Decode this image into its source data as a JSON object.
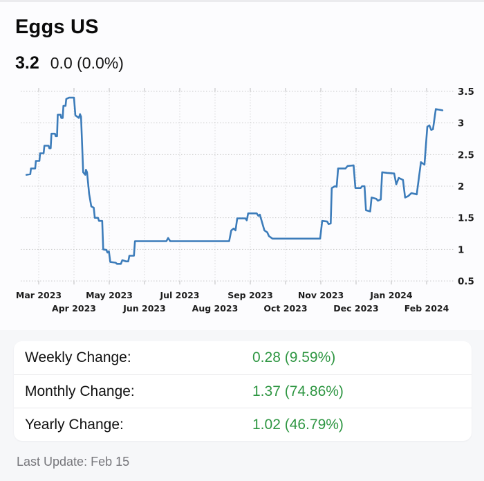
{
  "header": {
    "title": "Eggs US",
    "price": "3.2",
    "change": "0.0 (0.0%)"
  },
  "chart_data": {
    "type": "line",
    "title": "Eggs US price, weekly, Feb 2023 - Feb 2024",
    "series_name": "Eggs US",
    "line_color": "#3c7cba",
    "grid_color_h": "#c9c9c9",
    "grid_color_v": "#d9d9d9",
    "tick_color": "#bdbdbd",
    "label_color": "#1c1c1c",
    "x_tick_labels": [
      "Mar 2023",
      "Apr 2023",
      "May 2023",
      "Jun 2023",
      "Jul 2023",
      "Aug 2023",
      "Sep 2023",
      "Oct 2023",
      "Nov 2023",
      "Dec 2023",
      "Jan 2024",
      "Feb 2024"
    ],
    "y_ticks": [
      0.5,
      1,
      1.5,
      2,
      2.5,
      3,
      3.5
    ],
    "ylim": [
      0.5,
      3.5
    ],
    "x_axis_note": "points are [month_offset_from_Mar_2023, price]; grid on; y labels on right",
    "points": [
      [
        -0.35,
        2.18
      ],
      [
        -0.24,
        2.19
      ],
      [
        -0.22,
        2.28
      ],
      [
        -0.1,
        2.28
      ],
      [
        -0.08,
        2.4
      ],
      [
        0.02,
        2.4
      ],
      [
        0.04,
        2.52
      ],
      [
        0.14,
        2.52
      ],
      [
        0.16,
        2.64
      ],
      [
        0.28,
        2.64
      ],
      [
        0.3,
        2.6
      ],
      [
        0.34,
        2.6
      ],
      [
        0.36,
        2.83
      ],
      [
        0.46,
        2.83
      ],
      [
        0.48,
        2.79
      ],
      [
        0.52,
        2.79
      ],
      [
        0.54,
        3.13
      ],
      [
        0.62,
        3.13
      ],
      [
        0.64,
        3.08
      ],
      [
        0.68,
        3.08
      ],
      [
        0.7,
        3.27
      ],
      [
        0.76,
        3.27
      ],
      [
        0.78,
        3.38
      ],
      [
        0.86,
        3.4
      ],
      [
        1.0,
        3.4
      ],
      [
        1.04,
        3.12
      ],
      [
        1.14,
        3.08
      ],
      [
        1.17,
        3.14
      ],
      [
        1.2,
        3.1
      ],
      [
        1.26,
        2.22
      ],
      [
        1.32,
        2.18
      ],
      [
        1.34,
        2.26
      ],
      [
        1.37,
        2.22
      ],
      [
        1.43,
        1.88
      ],
      [
        1.49,
        1.68
      ],
      [
        1.56,
        1.66
      ],
      [
        1.59,
        1.5
      ],
      [
        1.68,
        1.5
      ],
      [
        1.71,
        1.45
      ],
      [
        1.8,
        1.45
      ],
      [
        1.83,
        1.0
      ],
      [
        1.92,
        0.99
      ],
      [
        1.95,
        0.95
      ],
      [
        1.99,
        0.97
      ],
      [
        2.03,
        0.8
      ],
      [
        2.18,
        0.79
      ],
      [
        2.22,
        0.77
      ],
      [
        2.33,
        0.77
      ],
      [
        2.37,
        0.83
      ],
      [
        2.48,
        0.81
      ],
      [
        2.54,
        0.81
      ],
      [
        2.57,
        0.9
      ],
      [
        2.7,
        0.9
      ],
      [
        2.73,
        1.13
      ],
      [
        3.62,
        1.13
      ],
      [
        3.67,
        1.18
      ],
      [
        3.73,
        1.13
      ],
      [
        5.4,
        1.13
      ],
      [
        5.46,
        1.3
      ],
      [
        5.53,
        1.33
      ],
      [
        5.58,
        1.3
      ],
      [
        5.63,
        1.49
      ],
      [
        5.86,
        1.49
      ],
      [
        5.9,
        1.46
      ],
      [
        5.94,
        1.57
      ],
      [
        6.18,
        1.57
      ],
      [
        6.23,
        1.53
      ],
      [
        6.27,
        1.55
      ],
      [
        6.4,
        1.3
      ],
      [
        6.48,
        1.27
      ],
      [
        6.53,
        1.21
      ],
      [
        6.63,
        1.17
      ],
      [
        7.98,
        1.17
      ],
      [
        8.04,
        1.45
      ],
      [
        8.18,
        1.44
      ],
      [
        8.22,
        1.4
      ],
      [
        8.28,
        1.41
      ],
      [
        8.31,
        1.97
      ],
      [
        8.4,
        2.0
      ],
      [
        8.45,
        1.99
      ],
      [
        8.49,
        2.28
      ],
      [
        8.7,
        2.28
      ],
      [
        8.76,
        2.32
      ],
      [
        8.93,
        2.33
      ],
      [
        8.98,
        1.97
      ],
      [
        9.13,
        1.97
      ],
      [
        9.17,
        2.0
      ],
      [
        9.24,
        2.0
      ],
      [
        9.28,
        1.62
      ],
      [
        9.4,
        1.6
      ],
      [
        9.44,
        1.82
      ],
      [
        9.57,
        1.8
      ],
      [
        9.62,
        1.77
      ],
      [
        9.7,
        1.79
      ],
      [
        9.74,
        2.22
      ],
      [
        9.88,
        2.21
      ],
      [
        10.08,
        2.2
      ],
      [
        10.14,
        2.03
      ],
      [
        10.21,
        2.13
      ],
      [
        10.33,
        2.1
      ],
      [
        10.39,
        1.82
      ],
      [
        10.47,
        1.84
      ],
      [
        10.57,
        1.89
      ],
      [
        10.72,
        1.87
      ],
      [
        10.84,
        2.38
      ],
      [
        10.94,
        2.34
      ],
      [
        11.02,
        2.94
      ],
      [
        11.08,
        2.96
      ],
      [
        11.13,
        2.89
      ],
      [
        11.18,
        2.9
      ],
      [
        11.26,
        3.22
      ],
      [
        11.45,
        3.2
      ]
    ]
  },
  "stats": {
    "value_color": "#2e9642",
    "rows": [
      {
        "label": "Weekly Change:",
        "value": "0.28 (9.59%)"
      },
      {
        "label": "Monthly Change:",
        "value": "1.37 (74.86%)"
      },
      {
        "label": "Yearly Change:",
        "value": "1.02 (46.79%)"
      }
    ]
  },
  "footer": {
    "last_update": "Last Update: Feb 15"
  }
}
